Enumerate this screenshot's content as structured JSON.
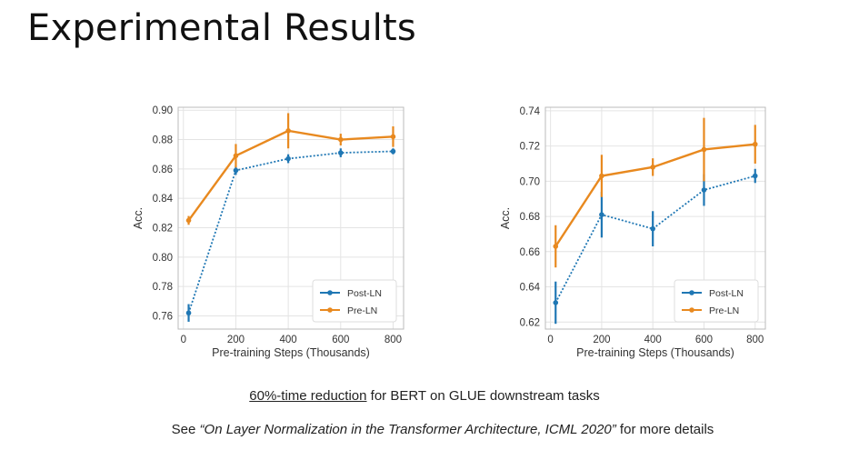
{
  "slide_title": "Experimental Results",
  "caption": {
    "underlined": "60%-time reduction",
    "rest": " for BERT on GLUE downstream tasks"
  },
  "reference": {
    "prefix": "See ",
    "citation": "“On Layer Normalization in the Transformer Architecture, ICML 2020”",
    "suffix": " for more details"
  },
  "colors": {
    "post_ln": "#1f77b4",
    "pre_ln": "#e8891f",
    "grid": "#e4e4e4"
  },
  "chart_data": [
    {
      "type": "line",
      "title": "",
      "xlabel": "Pre-training Steps (Thousands)",
      "ylabel": "Acc.",
      "x": [
        20,
        200,
        400,
        600,
        800
      ],
      "xticks": [
        0,
        200,
        400,
        600,
        800
      ],
      "xlim": [
        -20,
        840
      ],
      "yticks": [
        0.76,
        0.78,
        0.8,
        0.82,
        0.84,
        0.86,
        0.88,
        0.9
      ],
      "ytick_labels": [
        "0.76",
        "0.78",
        "0.80",
        "0.82",
        "0.84",
        "0.86",
        "0.88",
        "0.90"
      ],
      "ylim": [
        0.751,
        0.902
      ],
      "legend": "bottom-right",
      "series": [
        {
          "name": "Post-LN",
          "color": "#1f77b4",
          "style": "dotted",
          "values": [
            0.762,
            0.859,
            0.867,
            0.871,
            0.872
          ],
          "err": [
            0.006,
            0.003,
            0.003,
            0.003,
            0.002
          ]
        },
        {
          "name": "Pre-LN",
          "color": "#e8891f",
          "style": "solid",
          "values": [
            0.825,
            0.869,
            0.886,
            0.88,
            0.882
          ],
          "err": [
            0.003,
            0.008,
            0.012,
            0.004,
            0.007
          ]
        }
      ]
    },
    {
      "type": "line",
      "title": "",
      "xlabel": "Pre-training Steps (Thousands)",
      "ylabel": "Acc.",
      "x": [
        20,
        200,
        400,
        600,
        800
      ],
      "xticks": [
        0,
        200,
        400,
        600,
        800
      ],
      "xlim": [
        -20,
        840
      ],
      "yticks": [
        0.62,
        0.64,
        0.66,
        0.68,
        0.7,
        0.72,
        0.74
      ],
      "ytick_labels": [
        "0.62",
        "0.64",
        "0.66",
        "0.68",
        "0.70",
        "0.72",
        "0.74"
      ],
      "ylim": [
        0.616,
        0.742
      ],
      "legend": "bottom-right",
      "series": [
        {
          "name": "Post-LN",
          "color": "#1f77b4",
          "style": "dotted",
          "values": [
            0.631,
            0.681,
            0.673,
            0.695,
            0.703
          ],
          "err": [
            0.012,
            0.013,
            0.01,
            0.009,
            0.004
          ]
        },
        {
          "name": "Pre-LN",
          "color": "#e8891f",
          "style": "solid",
          "values": [
            0.663,
            0.703,
            0.708,
            0.718,
            0.721
          ],
          "err": [
            0.012,
            0.012,
            0.005,
            0.018,
            0.011
          ]
        }
      ]
    }
  ]
}
